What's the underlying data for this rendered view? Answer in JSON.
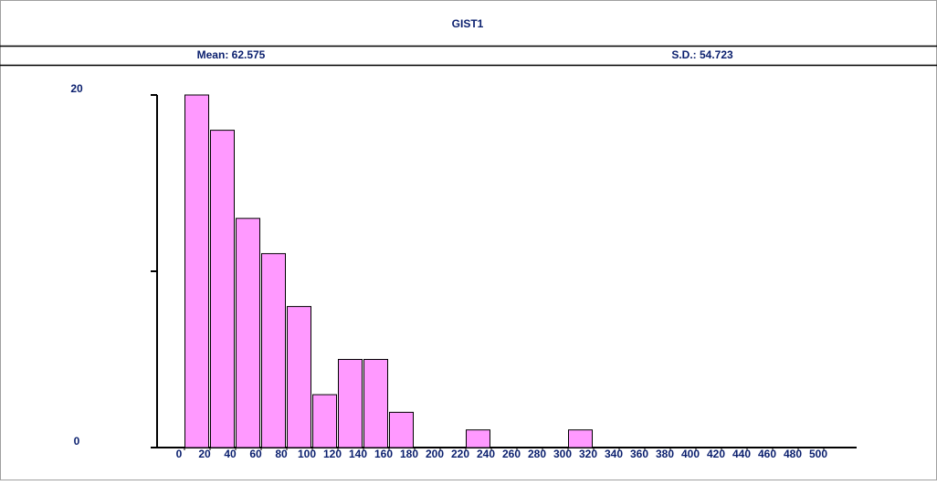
{
  "chart_data": {
    "type": "histogram",
    "title": "GIST1",
    "stats": {
      "mean": "Mean: 62.575",
      "sd": "S.D.: 54.723"
    },
    "bins": [
      0,
      20,
      40,
      60,
      80,
      100,
      120,
      140,
      160,
      180,
      200,
      220,
      240,
      260,
      280,
      300,
      320,
      340,
      360,
      380,
      400,
      420,
      440,
      460,
      480,
      500
    ],
    "values": [
      20,
      18,
      13,
      11,
      8,
      3,
      5,
      5,
      2,
      0,
      0,
      1,
      0,
      0,
      0,
      1,
      0,
      0,
      0,
      0,
      0,
      0,
      0,
      0,
      0
    ],
    "color": "#ff99ff",
    "xlim": [
      0,
      500
    ],
    "xticks": [
      0,
      20,
      40,
      60,
      80,
      100,
      120,
      140,
      160,
      180,
      200,
      220,
      240,
      260,
      280,
      300,
      320,
      340,
      360,
      380,
      400,
      420,
      440,
      460,
      480,
      500
    ],
    "ylim": [
      0,
      20
    ],
    "yticks": [
      0,
      20
    ],
    "y_minor_ticks": [
      10
    ]
  }
}
